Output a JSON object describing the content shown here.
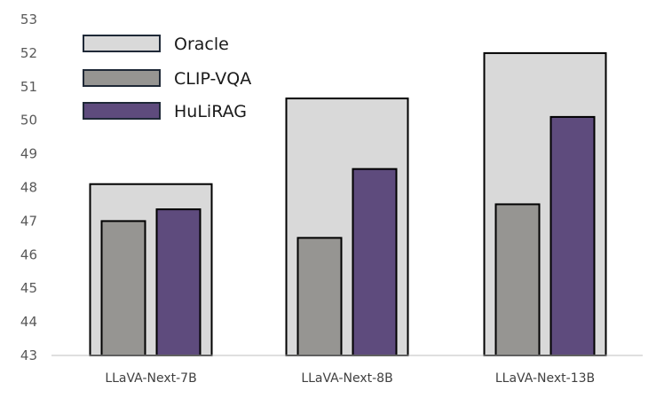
{
  "chart_data": {
    "type": "bar",
    "categories": [
      "LLaVA-Next-7B",
      "LLaVA-Next-8B",
      "LLaVA-Next-13B"
    ],
    "series": [
      {
        "name": "Oracle",
        "values": [
          48.1,
          50.65,
          52.0
        ],
        "color": "#d9d9d9"
      },
      {
        "name": "CLIP-VQA",
        "values": [
          47.0,
          46.5,
          47.5
        ],
        "color": "#969592"
      },
      {
        "name": "HuLiRAG",
        "values": [
          47.35,
          48.55,
          50.1
        ],
        "color": "#5e4b7d"
      }
    ],
    "yticks": [
      43,
      44,
      45,
      46,
      47,
      48,
      49,
      50,
      51,
      52,
      53
    ],
    "ylim": [
      43,
      53
    ],
    "xlabel": "",
    "ylabel": "",
    "grid": false,
    "legend_position": "top-left",
    "bar_outline_color": "#000000"
  }
}
